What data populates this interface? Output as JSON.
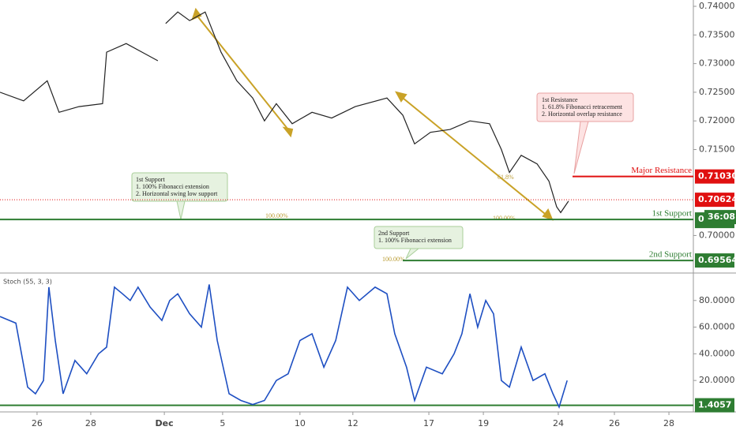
{
  "chart_data": [
    {
      "type": "line",
      "series": [
        {
          "color": "#222222",
          "x": [
            -1.38,
            -0.5,
            0.38,
            0.82,
            1.56,
            2.44,
            2.59,
            3.32,
            3.91,
            4.5,
            null,
            4.79,
            5.24,
            5.68,
            6.26,
            6.85,
            7.44,
            8.03,
            8.47,
            8.91,
            9.5,
            10.24,
            10.97,
            11.85,
            13.03,
            13.62,
            14.06,
            14.65,
            15.38,
            16.12,
            16.85,
            17.29,
            17.59,
            18.03,
            18.62,
            19.06,
            19.35,
            19.5,
            19.79
          ],
          "values": [
            0.725,
            0.7235,
            0.727,
            0.7215,
            0.7225,
            0.723,
            0.732,
            0.7335,
            0.732,
            0.7305,
            null,
            0.737,
            0.739,
            0.7375,
            0.739,
            0.732,
            0.727,
            0.724,
            0.72,
            0.723,
            0.7195,
            0.7215,
            0.7205,
            0.7225,
            0.724,
            0.721,
            0.716,
            0.718,
            0.7185,
            0.72,
            0.7195,
            0.715,
            0.711,
            0.714,
            0.7125,
            0.7095,
            0.705,
            0.704,
            0.706
          ]
        }
      ],
      "xlim": [
        -1.38,
        24.44
      ],
      "xticks": [
        {
          "value": 0,
          "label": "26"
        },
        {
          "value": 2,
          "label": "28"
        },
        {
          "value": 4.74,
          "label": "Dec"
        },
        {
          "value": 6.91,
          "label": "5"
        },
        {
          "value": 9.79,
          "label": "10"
        },
        {
          "value": 11.76,
          "label": "12"
        },
        {
          "value": 14.59,
          "label": "17"
        },
        {
          "value": 16.62,
          "label": "19"
        },
        {
          "value": 19.41,
          "label": "24"
        },
        {
          "value": 21.5,
          "label": "26"
        },
        {
          "value": 23.53,
          "label": "28"
        }
      ],
      "ylim": [
        0.69345,
        0.7411
      ],
      "yticks": [
        {
          "value": 0.74,
          "label": "0.74000"
        },
        {
          "value": 0.735,
          "label": "0.73500"
        },
        {
          "value": 0.73,
          "label": "0.73000"
        },
        {
          "value": 0.725,
          "label": "0.72500"
        },
        {
          "value": 0.72,
          "label": "0.72000"
        },
        {
          "value": 0.715,
          "label": "0.71500"
        },
        {
          "value": 0.7,
          "label": "0.70000"
        }
      ],
      "levels": [
        {
          "name": "Major Resistance",
          "value": 0.7103,
          "label": "0.71030",
          "color": "#e01010"
        },
        {
          "value": 0.70624,
          "label": "0.70624",
          "color": "#e01010"
        },
        {
          "name": "1st Support",
          "value": 0.7028,
          "label": "0.",
          "timer": "36:08",
          "color": "#2e7d32"
        },
        {
          "name": "2nd Support",
          "value": 0.69564,
          "label": "0.69564",
          "color": "#2e7d32"
        }
      ],
      "fib_labels": [
        "100.00%",
        "100.00%",
        "100.00%",
        "61.8%"
      ],
      "notes": [
        {
          "title": "1st Resistance",
          "lines": [
            "1. 61.8% Fibonacci retracement",
            "2. Horizontal overlap resistance"
          ]
        },
        {
          "title": "1st Support",
          "lines": [
            "1. 100% Fibonacci extension",
            "2. Horizontal swing low support"
          ]
        },
        {
          "title": "2nd Support",
          "lines": [
            "1. 100% Fibonacci extension"
          ]
        }
      ]
    },
    {
      "type": "line",
      "title": "Stoch (55, 3, 3)",
      "series": [
        {
          "color": "#1e4fc2",
          "x": [
            -1.38,
            -0.79,
            -0.35,
            -0.06,
            0.24,
            0.44,
            0.68,
            0.97,
            1.41,
            1.85,
            2.29,
            2.59,
            2.88,
            3.18,
            3.47,
            3.76,
            4.21,
            4.65,
            4.94,
            5.24,
            5.68,
            6.12,
            6.41,
            6.71,
            7.15,
            7.59,
            8.03,
            8.47,
            8.91,
            9.35,
            9.79,
            10.24,
            10.68,
            11.12,
            11.56,
            12.0,
            12.59,
            13.03,
            13.32,
            13.76,
            14.06,
            14.5,
            15.09,
            15.53,
            15.82,
            16.12,
            16.41,
            16.71,
            17.0,
            17.29,
            17.59,
            18.03,
            18.47,
            18.91,
            19.21,
            19.44,
            19.74
          ],
          "values": [
            68,
            63,
            15,
            10,
            20,
            90,
            50,
            10,
            35,
            25,
            40,
            45,
            90,
            85,
            80,
            90,
            75,
            65,
            80,
            85,
            70,
            60,
            92,
            50,
            10,
            5,
            2,
            5,
            20,
            25,
            50,
            55,
            30,
            50,
            90,
            80,
            90,
            85,
            55,
            30,
            5,
            30,
            25,
            40,
            55,
            85,
            60,
            80,
            70,
            20,
            15,
            45,
            20,
            25,
            10,
            0,
            20
          ]
        }
      ],
      "xlim": [
        -1.38,
        24.44
      ],
      "ylim": [
        -2.4,
        99.4
      ],
      "yticks": [
        {
          "value": 80,
          "label": "80.0000"
        },
        {
          "value": 60,
          "label": "60.0000"
        },
        {
          "value": 40,
          "label": "40.0000"
        },
        {
          "value": 20,
          "label": "20.0000"
        }
      ],
      "level": {
        "value": 1.4057,
        "label": "1.4057",
        "color": "#2e7d32"
      }
    }
  ]
}
